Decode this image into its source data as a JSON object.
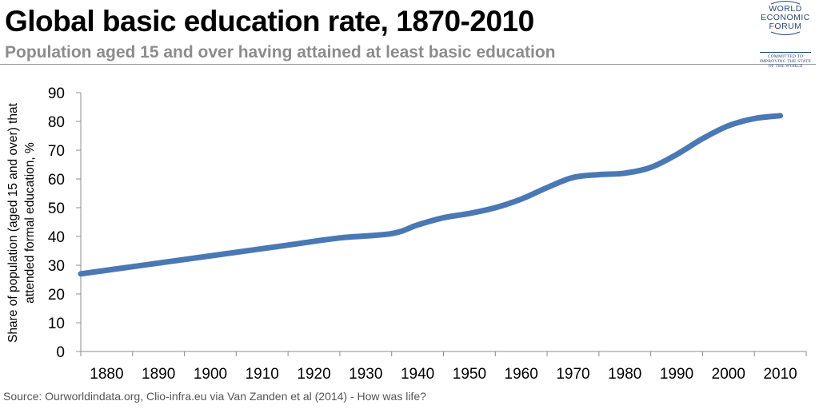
{
  "header": {
    "title": "Global basic education rate, 1870-2010",
    "subtitle": "Population aged 15 and over having attained at least basic education"
  },
  "logo": {
    "line1": "WORLD",
    "line2": "ECONOMIC",
    "line3": "FORUM",
    "tag1": "COMMITTED TO",
    "tag2": "IMPROVING THE STATE",
    "tag3": "OF THE WORLD"
  },
  "source": "Source: Ourworldindata.org, Clio-infra.eu via Van Zanden et al (2014) - How was life?",
  "chart_data": {
    "type": "line",
    "title": "Global basic education rate, 1870-2010",
    "subtitle": "Population aged 15 and over having attained at least basic education",
    "xlabel": "",
    "ylabel": "Share of population (aged 15 and over) that attended formal education, %",
    "ylim": [
      0,
      90
    ],
    "yticks": [
      0,
      10,
      20,
      30,
      40,
      50,
      60,
      70,
      80,
      90
    ],
    "categories": [
      "1880",
      "1890",
      "1900",
      "1910",
      "1920",
      "1930",
      "1940",
      "1950",
      "1960",
      "1970",
      "1980",
      "1990",
      "2000",
      "2010"
    ],
    "grid": false,
    "legend": "none",
    "line_color": "#4a78b5",
    "series": [
      {
        "x": [
          1875,
          1885,
          1895,
          1905,
          1915,
          1925,
          1935,
          1940,
          1945,
          1950,
          1955,
          1960,
          1965,
          1970,
          1975,
          1980,
          1985,
          1990,
          1995,
          2000,
          2005,
          2010
        ],
        "values": [
          27,
          29.5,
          32,
          34.5,
          37,
          39.5,
          41,
          44,
          46.5,
          48,
          50,
          53,
          57,
          60.5,
          61.5,
          62,
          64,
          68.5,
          74,
          78.5,
          81,
          82
        ]
      }
    ]
  }
}
